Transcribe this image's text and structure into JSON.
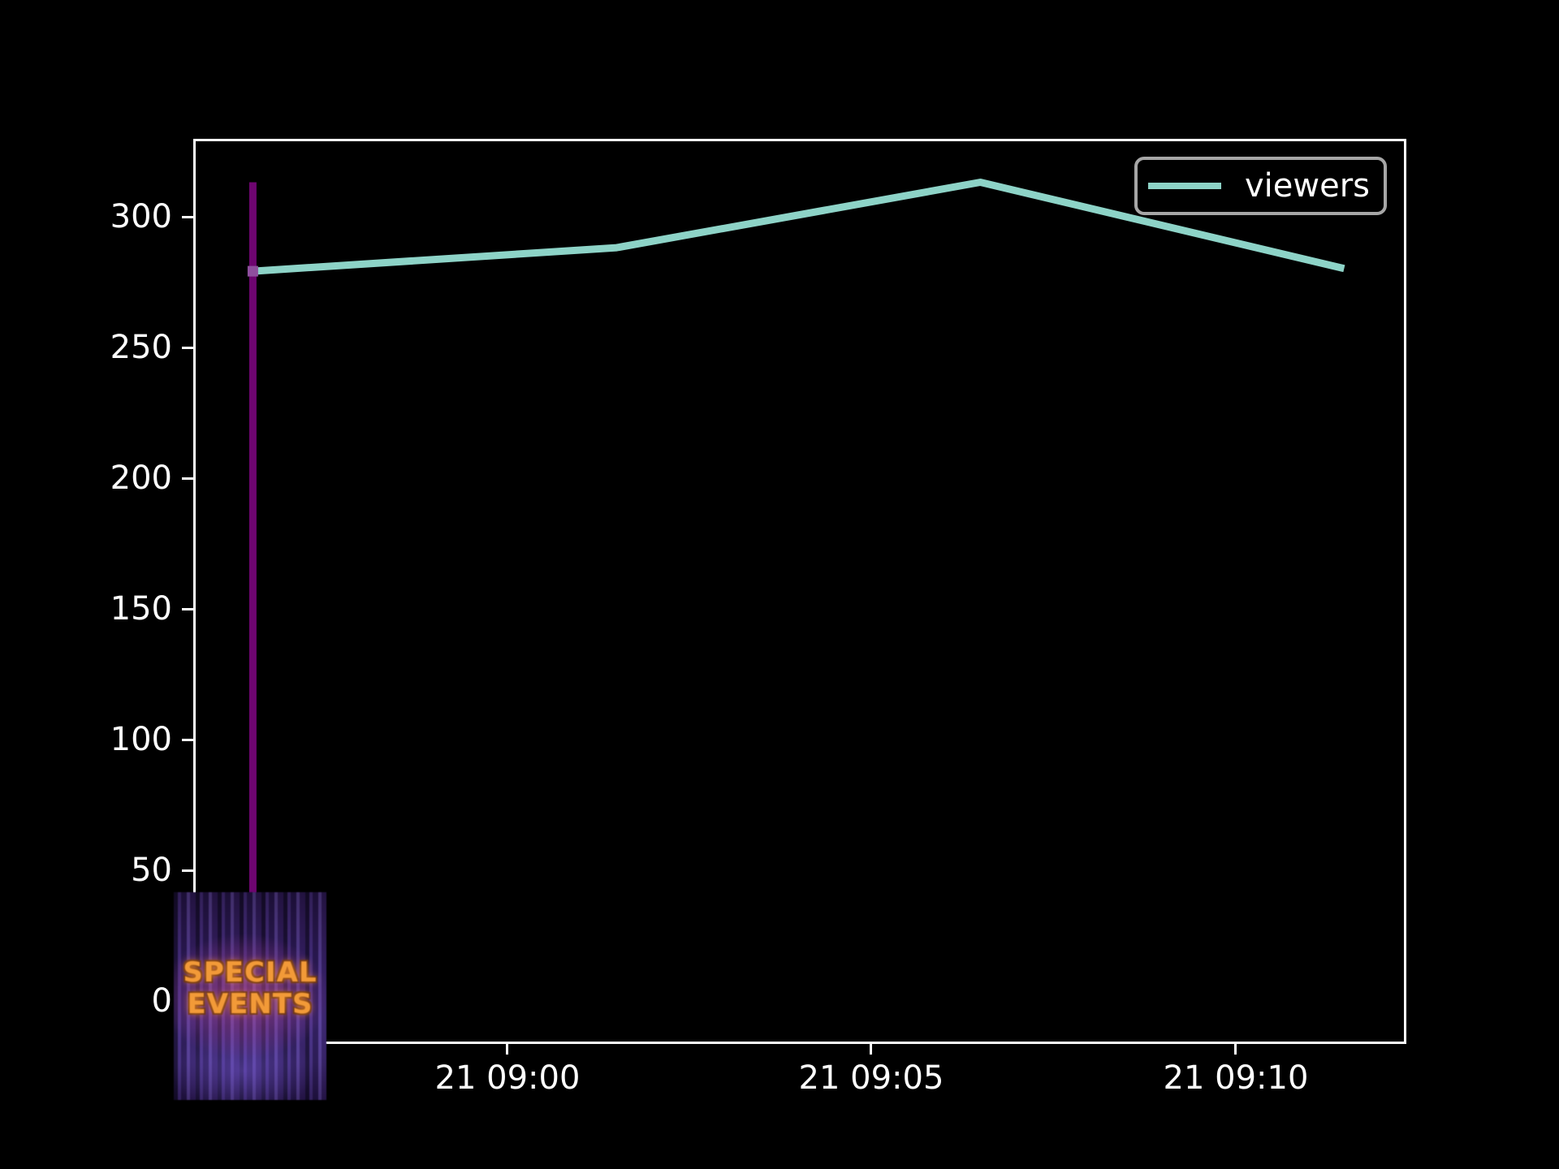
{
  "figure": {
    "background_color": "#000000",
    "foreground_color": "#ffffff"
  },
  "axes": {
    "yticks": [
      "300",
      "250",
      "200",
      "150",
      "100",
      "50",
      "0"
    ],
    "xticks": [
      "21 09:00",
      "21 09:05",
      "21 09:10"
    ]
  },
  "legend": {
    "label": "viewers",
    "line_color": "#8dd3c7",
    "border_color": "#a6a6a6",
    "position": "upper right"
  },
  "chart_data": {
    "type": "line",
    "title": "",
    "xlabel": "",
    "ylabel": "",
    "grid": false,
    "y_ticks": [
      0,
      50,
      100,
      150,
      200,
      250,
      300
    ],
    "ylim": [
      -16,
      329
    ],
    "x_tick_labels": [
      "21 09:00",
      "21 09:05",
      "21 09:10"
    ],
    "xlim_minutes_rel_0900": [
      -4.3,
      12.3
    ],
    "series": [
      {
        "name": "viewers",
        "color": "#8dd3c7",
        "x_times": [
          "08:56:30",
          "09:01:30",
          "09:06:30",
          "09:11:30"
        ],
        "x_minutes_rel_0900": [
          -3.5,
          1.5,
          6.5,
          11.5
        ],
        "values": [
          279,
          288,
          313,
          280
        ]
      }
    ],
    "event_line": {
      "x_time": "08:56:30",
      "x_minutes_rel_0900": -3.5,
      "ymin": 0,
      "ymax": 313,
      "color": "#6e0570",
      "marker_color": "#8f4f9e"
    },
    "annotation_image": {
      "name": "special-events-curtain-badge",
      "label_line1": "SPECIAL",
      "label_line2": "EVENTS"
    }
  }
}
